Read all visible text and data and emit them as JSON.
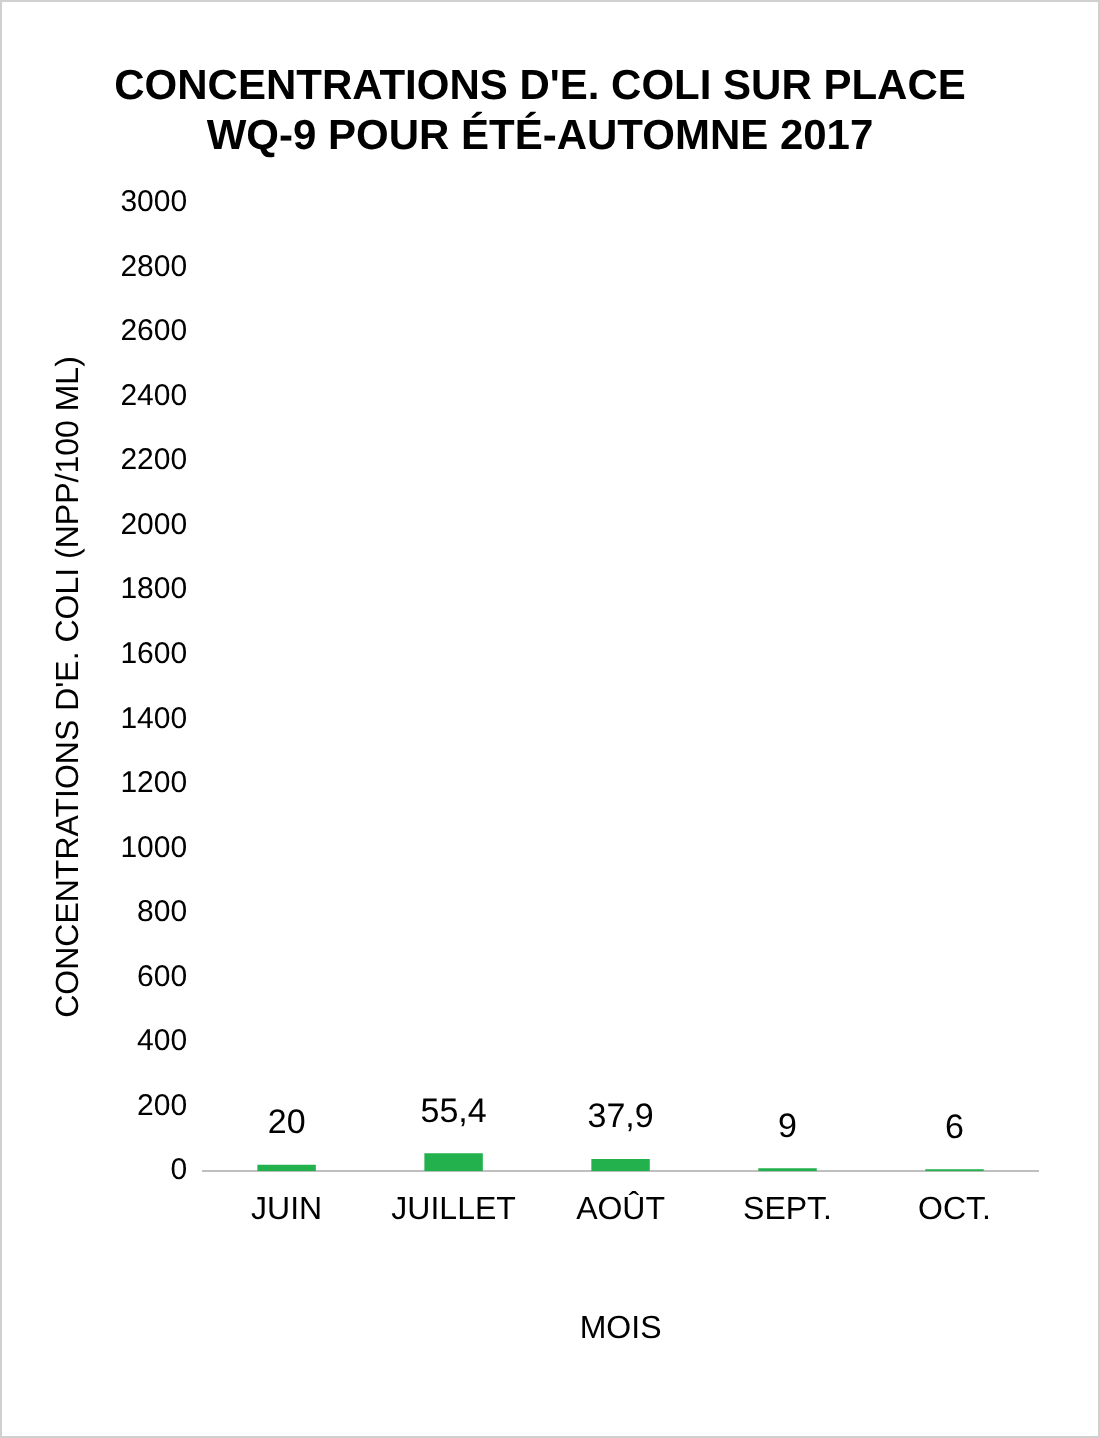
{
  "chart_data": {
    "type": "bar",
    "title": [
      "CONCENTRATIONS D'E. COLI SUR PLACE",
      "WQ-9 POUR ÉTÉ-AUTOMNE 2017"
    ],
    "xlabel": "MOIS",
    "ylabel": "CONCENTRATIONS D'E. COLI (NPP/100 ML)",
    "categories": [
      "JUIN",
      "JUILLET",
      "AOÛT",
      "SEPT.",
      "OCT."
    ],
    "values": [
      20,
      55.4,
      37.9,
      9,
      6
    ],
    "value_labels": [
      "20",
      "55,4",
      "37,9",
      "9",
      "6"
    ],
    "color": "#22b14c",
    "ylim": [
      0,
      3000
    ],
    "yticks": [
      0,
      200,
      400,
      600,
      800,
      1000,
      1200,
      1400,
      1600,
      1800,
      2000,
      2200,
      2400,
      2600,
      2800,
      3000
    ],
    "grid": false,
    "legend": false
  }
}
